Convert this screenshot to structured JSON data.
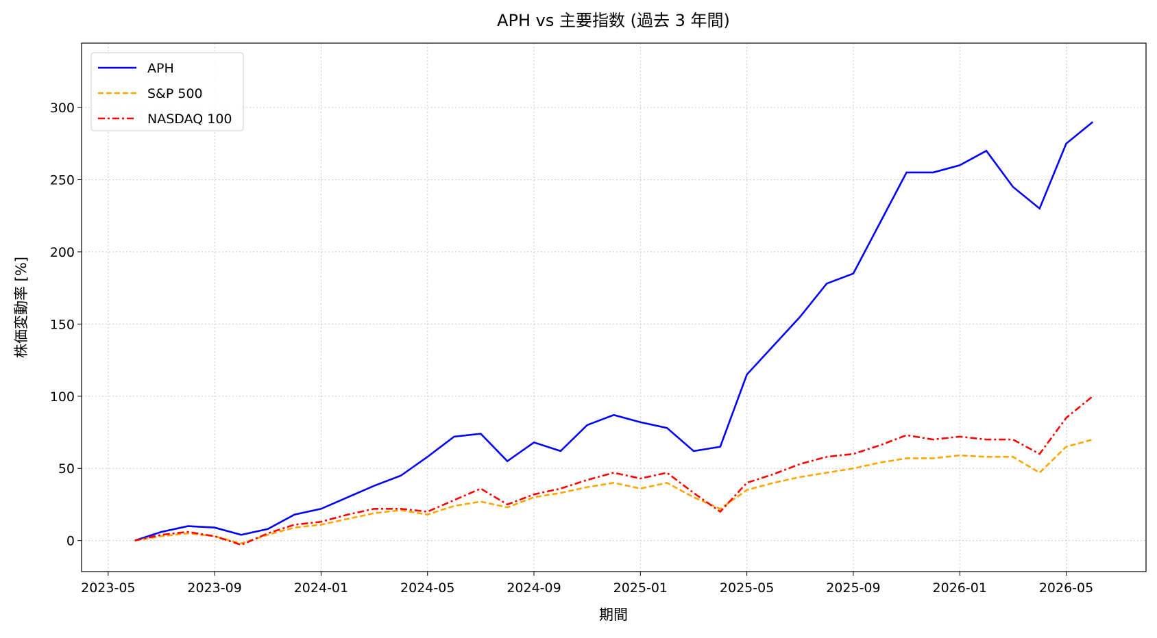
{
  "chart_data": {
    "type": "line",
    "title": "APH vs 主要指数 (過去 3 年間)",
    "x_label": "期間",
    "y_label": "株価変動率 [%]",
    "x": [
      "2023-06",
      "2023-07",
      "2023-08",
      "2023-09",
      "2023-10",
      "2023-11",
      "2023-12",
      "2024-01",
      "2024-02",
      "2024-03",
      "2024-04",
      "2024-05",
      "2024-06",
      "2024-07",
      "2024-08",
      "2024-09",
      "2024-10",
      "2024-11",
      "2024-12",
      "2025-01",
      "2025-02",
      "2025-03",
      "2025-04",
      "2025-05",
      "2025-06",
      "2025-07",
      "2025-08",
      "2025-09",
      "2025-10",
      "2025-11",
      "2025-12",
      "2026-01",
      "2026-02",
      "2026-03",
      "2026-04",
      "2026-05",
      "2026-06"
    ],
    "series": [
      {
        "name": "APH",
        "color": "#0000ff",
        "linestyle": "solid",
        "values": [
          0,
          6,
          10,
          9,
          4,
          8,
          18,
          22,
          30,
          38,
          45,
          58,
          72,
          74,
          55,
          68,
          62,
          80,
          87,
          82,
          78,
          62,
          65,
          115,
          135,
          155,
          178,
          185,
          220,
          255,
          255,
          260,
          270,
          245,
          230,
          275,
          290
        ]
      },
      {
        "name": "S&P 500",
        "color": "#ffa500",
        "linestyle": "dashed",
        "values": [
          0,
          3,
          5,
          3,
          -2,
          4,
          9,
          11,
          15,
          19,
          21,
          18,
          24,
          27,
          23,
          30,
          33,
          37,
          40,
          36,
          40,
          30,
          22,
          35,
          40,
          44,
          47,
          50,
          54,
          57,
          57,
          59,
          58,
          58,
          47,
          65,
          70
        ]
      },
      {
        "name": "NASDAQ 100",
        "color": "#ff0000",
        "linestyle": "dashdot",
        "values": [
          0,
          4,
          6,
          3,
          -3,
          5,
          11,
          13,
          18,
          22,
          22,
          20,
          28,
          36,
          25,
          32,
          36,
          42,
          47,
          43,
          47,
          33,
          20,
          40,
          46,
          53,
          58,
          60,
          66,
          73,
          70,
          72,
          70,
          70,
          60,
          85,
          100
        ]
      }
    ],
    "xlim": [
      "2023-04",
      "2026-08"
    ],
    "xticks": [
      "2023-05",
      "2023-09",
      "2024-01",
      "2024-05",
      "2024-09",
      "2025-01",
      "2025-05",
      "2025-09",
      "2026-01",
      "2026-05"
    ],
    "ylim": [
      -21.5,
      344.6
    ],
    "yticks": [
      0,
      50,
      100,
      150,
      200,
      250,
      300
    ],
    "grid": true,
    "legend": "upper-left"
  }
}
